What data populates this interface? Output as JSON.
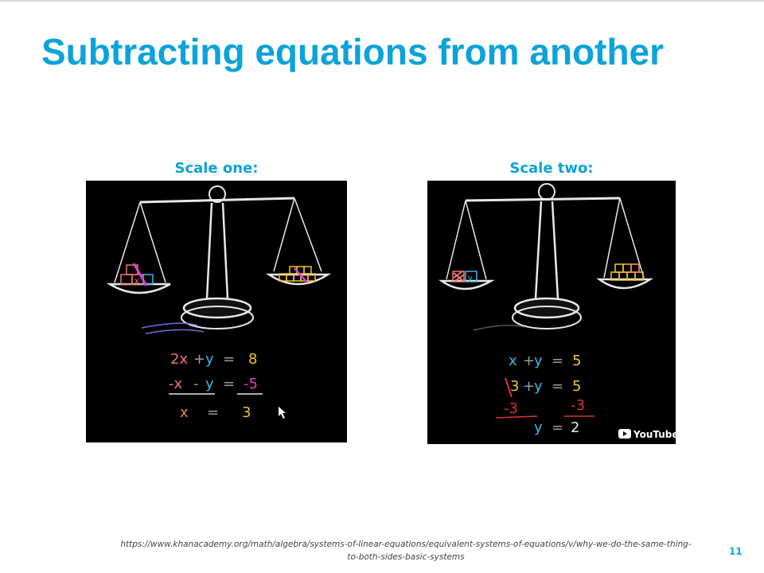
{
  "slide": {
    "title": "Subtracting equations from another",
    "page_number": "11",
    "source_url_line1": "https://www.khanacademy.org/math/algebra/systems-of-linear-equations/equivalent-systems-of-equations/v/why-we-do-the-same-thing-",
    "source_url_line2": "to-both-sides-basic-systems"
  },
  "scale_one": {
    "caption": "Scale one:",
    "block_label": "x",
    "eq1": {
      "l1": "2x",
      "op": "+",
      "l2": "y",
      "eq": "=",
      "r": "8"
    },
    "eq2": {
      "l1": "-x",
      "op": "-",
      "l2": "y",
      "eq": "=",
      "r": "-5"
    },
    "result": {
      "l": "x",
      "eq": "=",
      "r": "3"
    }
  },
  "scale_two": {
    "caption": "Scale two:",
    "block_label": "y",
    "eq1": {
      "l1": "x",
      "op": "+",
      "l2": "y",
      "eq": "=",
      "r": "5"
    },
    "eq2": {
      "l1": "3",
      "op": "+",
      "l2": "y",
      "eq": "=",
      "r": "5"
    },
    "eq3": {
      "l": "-3",
      "r": "-3"
    },
    "result": {
      "l": "y",
      "eq": "=",
      "r": "2"
    },
    "watermark": "YouTube"
  },
  "colors": {
    "accent": "#0ba3d9",
    "chalk_red": "#f0776e",
    "chalk_blue": "#3ab6e8",
    "chalk_yellow": "#f2c230",
    "chalk_pink": "#e23bd0",
    "chalk_white": "#e8e8e8"
  }
}
